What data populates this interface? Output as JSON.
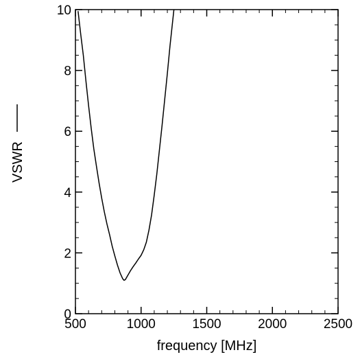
{
  "chart_data": {
    "type": "line",
    "title": "",
    "xlabel": "frequency  [MHz]",
    "ylabel": "VSWR",
    "xlim": [
      500,
      2500
    ],
    "ylim": [
      0,
      10
    ],
    "x_ticks": [
      500,
      1000,
      1500,
      2000,
      2500
    ],
    "y_ticks": [
      0,
      2,
      4,
      6,
      8,
      10
    ],
    "x_minor_step": 100,
    "y_minor_step": 0.5,
    "grid": false,
    "legend": "left, rotated beside axis label (line sample)",
    "line_color": "#000000",
    "series": [
      {
        "name": "",
        "x": [
          520,
          540,
          560,
          580,
          600,
          620,
          640,
          660,
          680,
          700,
          720,
          740,
          760,
          780,
          800,
          820,
          840,
          860,
          870,
          880,
          900,
          920,
          940,
          960,
          980,
          1000,
          1020,
          1040,
          1060,
          1080,
          1100,
          1120,
          1140,
          1160,
          1180,
          1200,
          1220,
          1240,
          1250
        ],
        "y": [
          9.95,
          9.2,
          8.5,
          7.65,
          6.85,
          6.1,
          5.42,
          4.85,
          4.3,
          3.8,
          3.35,
          2.95,
          2.6,
          2.22,
          1.9,
          1.6,
          1.34,
          1.15,
          1.1,
          1.12,
          1.27,
          1.42,
          1.55,
          1.67,
          1.8,
          1.92,
          2.1,
          2.35,
          2.75,
          3.25,
          3.9,
          4.6,
          5.4,
          6.2,
          7.05,
          7.9,
          8.8,
          9.6,
          10.0
        ]
      }
    ]
  }
}
